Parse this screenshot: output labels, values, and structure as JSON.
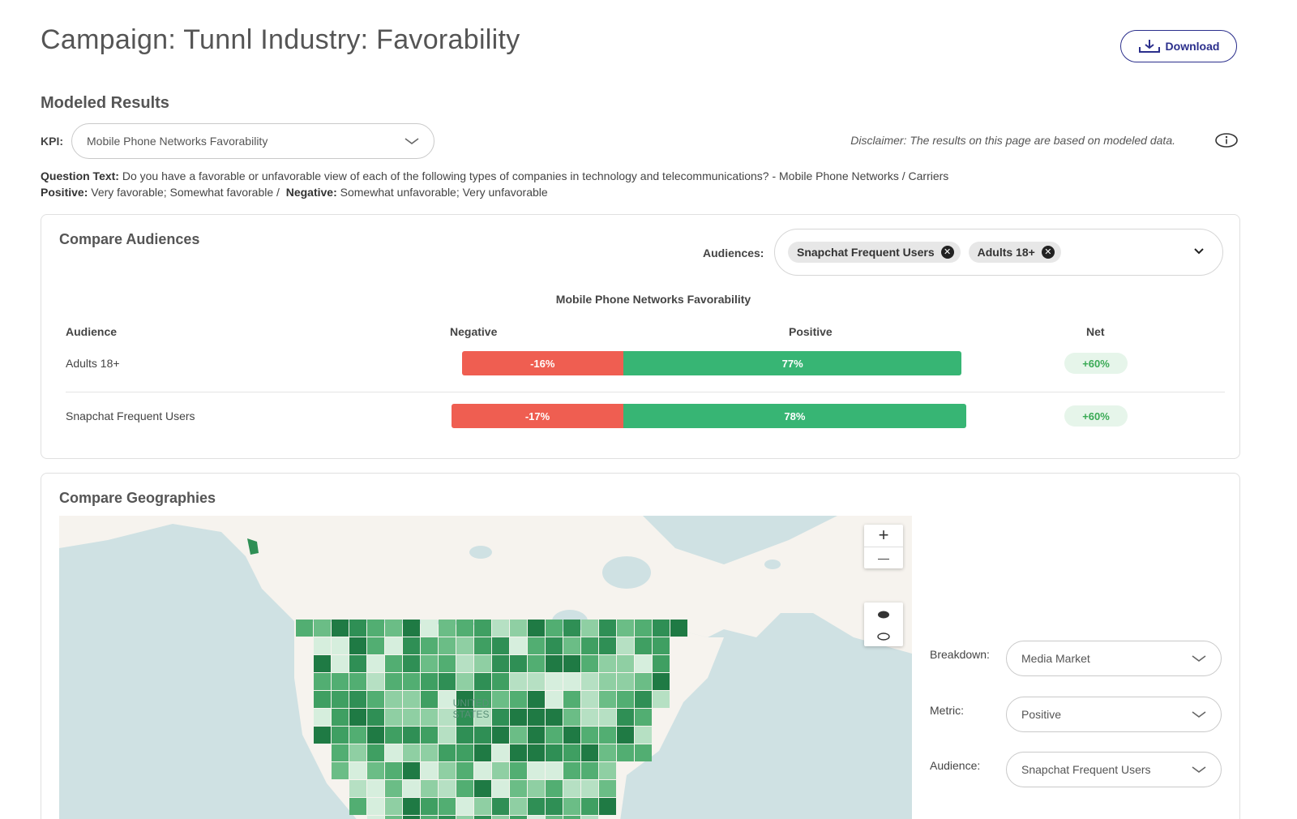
{
  "header": {
    "title": "Campaign: Tunnl Industry: Favorability",
    "download_label": "Download"
  },
  "modeled": {
    "section_title": "Modeled Results",
    "kpi_label": "KPI:",
    "kpi_value": "Mobile Phone Networks Favorability",
    "disclaimer": "Disclaimer: The results on this page are based on modeled data.",
    "question_label": "Question Text:",
    "question_text": "Do you have a favorable or unfavorable view of each of the following types of companies in technology and telecommunications? - Mobile Phone Networks / Carriers",
    "positive_label": "Positive:",
    "positive_text": "Very favorable; Somewhat favorable /",
    "negative_label": "Negative:",
    "negative_text": "Somewhat unfavorable; Very unfavorable"
  },
  "compare_audiences": {
    "title": "Compare Audiences",
    "audiences_label": "Audiences:",
    "chips": [
      "Snapchat Frequent Users",
      "Adults 18+"
    ],
    "chip_remove_icon": "x-circle-icon",
    "chart_title": "Mobile Phone Networks Favorability",
    "columns": {
      "audience": "Audience",
      "negative": "Negative",
      "positive": "Positive",
      "net": "Net"
    },
    "rows": [
      {
        "name": "Adults 18+",
        "negative": -16,
        "positive": 77,
        "net": 60,
        "negative_label": "-16%",
        "positive_label": "77%",
        "net_label": "+60%"
      },
      {
        "name": "Snapchat Frequent Users",
        "negative": -17,
        "positive": 78,
        "net": 60,
        "negative_label": "-17%",
        "positive_label": "78%",
        "net_label": "+60%"
      }
    ],
    "colors": {
      "negative": "#ef5e51",
      "positive": "#37b574",
      "net_text": "#3aaa55"
    }
  },
  "compare_geographies": {
    "title": "Compare Geographies",
    "map_label": "UNITED STATES",
    "zoom_in": "+",
    "zoom_out": "—",
    "breakdown_label": "Breakdown:",
    "breakdown_value": "Media Market",
    "metric_label": "Metric:",
    "metric_value": "Positive",
    "audience_label": "Audience:",
    "audience_value": "Snapchat Frequent Users"
  },
  "chart_data": {
    "type": "bar",
    "title": "Mobile Phone Networks Favorability",
    "categories": [
      "Adults 18+",
      "Snapchat Frequent Users"
    ],
    "series": [
      {
        "name": "Negative",
        "values": [
          -16,
          -17
        ]
      },
      {
        "name": "Positive",
        "values": [
          77,
          78
        ]
      },
      {
        "name": "Net",
        "values": [
          60,
          60
        ]
      }
    ]
  }
}
